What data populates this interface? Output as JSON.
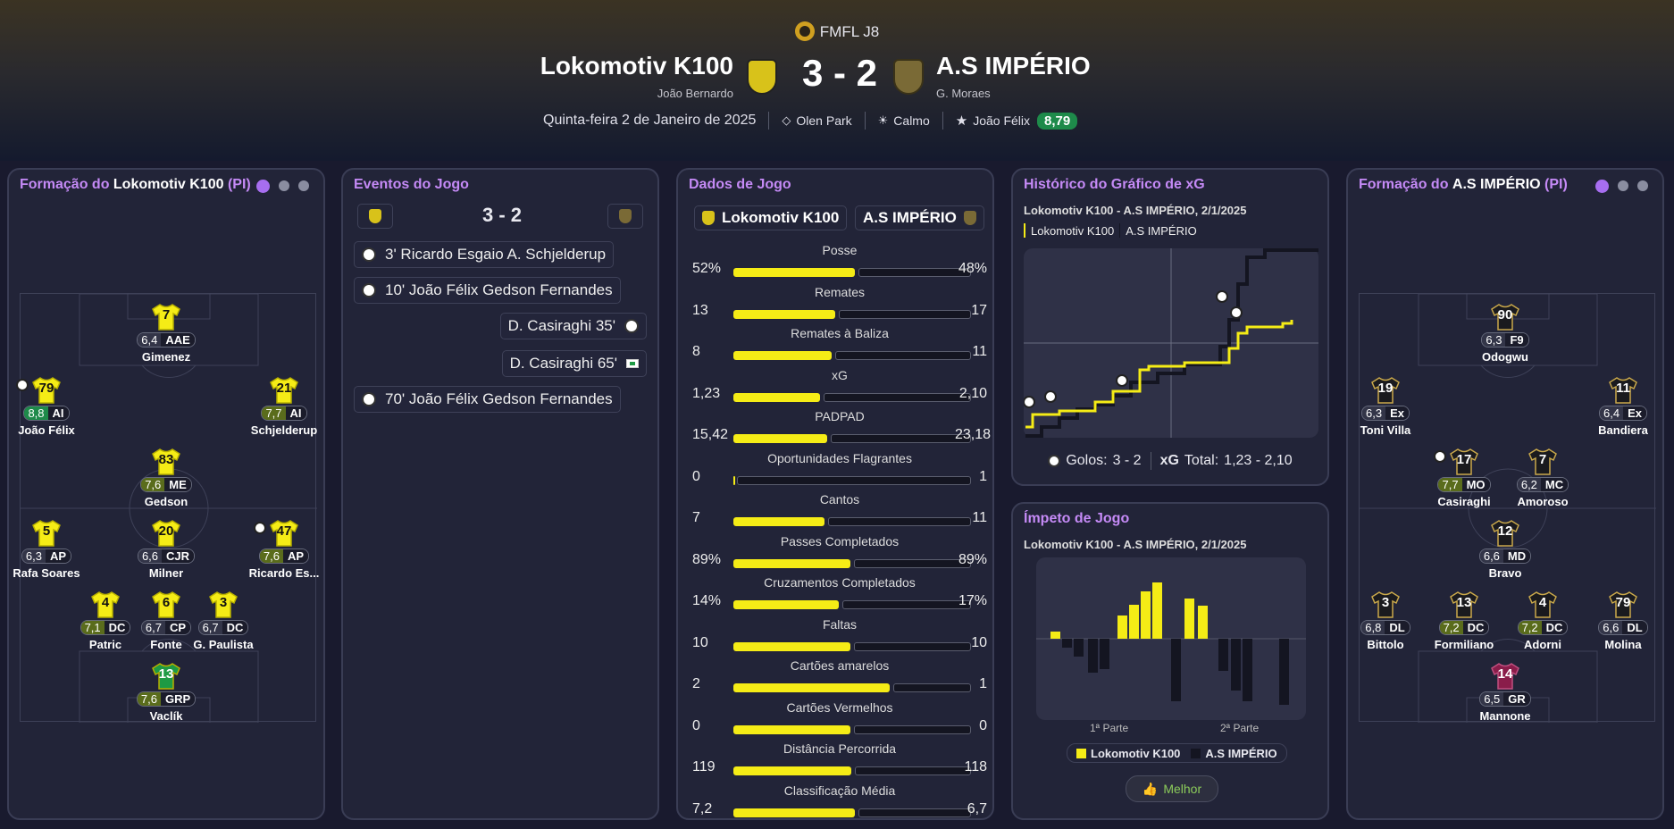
{
  "header": {
    "competition": "FMFL J8",
    "home_team": "Lokomotiv K100",
    "home_manager": "João Bernardo",
    "away_team": "A.S IMPÉRIO",
    "away_manager": "G. Moraes",
    "score": "3 - 2",
    "date": "Quinta-feira 2 de Janeiro de 2025",
    "stadium": "Olen Park",
    "weather": "Calmo",
    "potm": "João Félix",
    "potm_rating": "8,79"
  },
  "home_lineup": {
    "title_prefix": "Formação do ",
    "team": "Lokomotiv K100",
    "suffix": " (PI)",
    "players": [
      {
        "num": "7",
        "rating": "6,4",
        "pos": "AAE",
        "name": "Gimenez",
        "tier": "n"
      },
      {
        "num": "79",
        "rating": "8,8",
        "pos": "AI",
        "name": "João Félix",
        "tier": "gg"
      },
      {
        "num": "21",
        "rating": "7,7",
        "pos": "AI",
        "name": "Schjelderup",
        "tier": "g"
      },
      {
        "num": "83",
        "rating": "7,6",
        "pos": "ME",
        "name": "Gedson",
        "tier": "g"
      },
      {
        "num": "5",
        "rating": "6,3",
        "pos": "AP",
        "name": "Rafa Soares",
        "tier": "n"
      },
      {
        "num": "20",
        "rating": "6,6",
        "pos": "CJR",
        "name": "Milner",
        "tier": "n"
      },
      {
        "num": "47",
        "rating": "7,6",
        "pos": "AP",
        "name": "Ricardo Es...",
        "tier": "g"
      },
      {
        "num": "4",
        "rating": "7,1",
        "pos": "DC",
        "name": "Patric",
        "tier": "g"
      },
      {
        "num": "6",
        "rating": "6,7",
        "pos": "CP",
        "name": "Fonte",
        "tier": "n"
      },
      {
        "num": "3",
        "rating": "6,7",
        "pos": "DC",
        "name": "G. Paulista",
        "tier": "n"
      },
      {
        "num": "13",
        "rating": "7,6",
        "pos": "GRP",
        "name": "Vaclík",
        "tier": "g"
      }
    ]
  },
  "events": {
    "title": "Eventos do Jogo",
    "score": "3 - 2",
    "list": [
      {
        "text": "3'  Ricardo Esgaio  A. Schjelderup",
        "side": "home"
      },
      {
        "text": "10'  João Félix  Gedson Fernandes",
        "side": "home"
      },
      {
        "text": "D. Casiraghi  35'",
        "side": "away"
      },
      {
        "text": "D. Casiraghi  65'",
        "side": "away"
      },
      {
        "text": "70'  João Félix  Gedson Fernandes",
        "side": "home"
      }
    ]
  },
  "stats": {
    "title": "Dados de Jogo",
    "home": "Lokomotiv K100",
    "away": "A.S IMPÉRIO",
    "rows": [
      {
        "label": "Posse",
        "home": "52%",
        "away": "48%",
        "h": 52,
        "a": 48
      },
      {
        "label": "Remates",
        "home": "13",
        "away": "17",
        "h": 13,
        "a": 17
      },
      {
        "label": "Remates à Baliza",
        "home": "8",
        "away": "11",
        "h": 8,
        "a": 11
      },
      {
        "label": "xG",
        "home": "1,23",
        "away": "2,10",
        "h": 1.23,
        "a": 2.1
      },
      {
        "label": "PADPAD",
        "home": "15,42",
        "away": "23,18",
        "h": 15.42,
        "a": 23.18
      },
      {
        "label": "Oportunidades Flagrantes",
        "home": "0",
        "away": "1",
        "h": 0,
        "a": 1
      },
      {
        "label": "Cantos",
        "home": "7",
        "away": "11",
        "h": 7,
        "a": 11
      },
      {
        "label": "Passes Completados",
        "home": "89%",
        "away": "89%",
        "h": 89,
        "a": 89
      },
      {
        "label": "Cruzamentos Completados",
        "home": "14%",
        "away": "17%",
        "h": 14,
        "a": 17
      },
      {
        "label": "Faltas",
        "home": "10",
        "away": "10",
        "h": 10,
        "a": 10
      },
      {
        "label": "Cartões amarelos",
        "home": "2",
        "away": "1",
        "h": 2,
        "a": 1
      },
      {
        "label": "Cartões Vermelhos",
        "home": "0",
        "away": "0",
        "h": 0,
        "a": 0
      },
      {
        "label": "Distância Percorrida",
        "home": "119",
        "away": "118",
        "h": 119,
        "a": 118
      },
      {
        "label": "Classificação Média",
        "home": "7,2",
        "away": "6,7",
        "h": 7.2,
        "a": 6.7
      }
    ]
  },
  "xg": {
    "title": "Histórico do Gráfico de xG",
    "subtitle": "Lokomotiv K100 - A.S IMPÉRIO, 2/1/2025",
    "legend_home": "Lokomotiv K100",
    "legend_away": "A.S IMPÉRIO",
    "goals_label": "Golos:",
    "goals_value": "3 - 2",
    "xg_label": "xG",
    "total_label": "Total:",
    "total_value": "1,23  -  2,10"
  },
  "momentum": {
    "title": "Ímpeto de Jogo",
    "subtitle": "Lokomotiv K100 - A.S IMPÉRIO, 2/1/2025",
    "first_half": "1ª Parte",
    "second_half": "2ª Parte",
    "legend_home": "Lokomotiv K100",
    "legend_away": "A.S IMPÉRIO",
    "button": "Melhor"
  },
  "away_lineup": {
    "title_prefix": "Formação do ",
    "team": "A.S IMPÉRIO",
    "suffix": " (PI)",
    "players": [
      {
        "num": "90",
        "rating": "6,3",
        "pos": "F9",
        "name": "Odogwu",
        "tier": "n"
      },
      {
        "num": "19",
        "rating": "6,3",
        "pos": "Ex",
        "name": "Toni Villa",
        "tier": "n"
      },
      {
        "num": "11",
        "rating": "6,4",
        "pos": "Ex",
        "name": "Bandiera",
        "tier": "n"
      },
      {
        "num": "17",
        "rating": "7,7",
        "pos": "MO",
        "name": "Casiraghi",
        "tier": "g"
      },
      {
        "num": "7",
        "rating": "6,2",
        "pos": "MC",
        "name": "Amoroso",
        "tier": "n"
      },
      {
        "num": "12",
        "rating": "6,6",
        "pos": "MD",
        "name": "Bravo",
        "tier": "n"
      },
      {
        "num": "3",
        "rating": "6,8",
        "pos": "DL",
        "name": "Bittolo",
        "tier": "n"
      },
      {
        "num": "13",
        "rating": "7,2",
        "pos": "DC",
        "name": "Formiliano",
        "tier": "g"
      },
      {
        "num": "4",
        "rating": "7,2",
        "pos": "DC",
        "name": "Adorni",
        "tier": "g"
      },
      {
        "num": "79",
        "rating": "6,6",
        "pos": "DL",
        "name": "Molina",
        "tier": "n"
      },
      {
        "num": "14",
        "rating": "6,5",
        "pos": "GR",
        "name": "Mannone",
        "tier": "n"
      }
    ]
  },
  "colors": {
    "home": "#f5ec16",
    "away": "#141521",
    "accent": "#c58af6",
    "good": "#1e8a4a"
  }
}
